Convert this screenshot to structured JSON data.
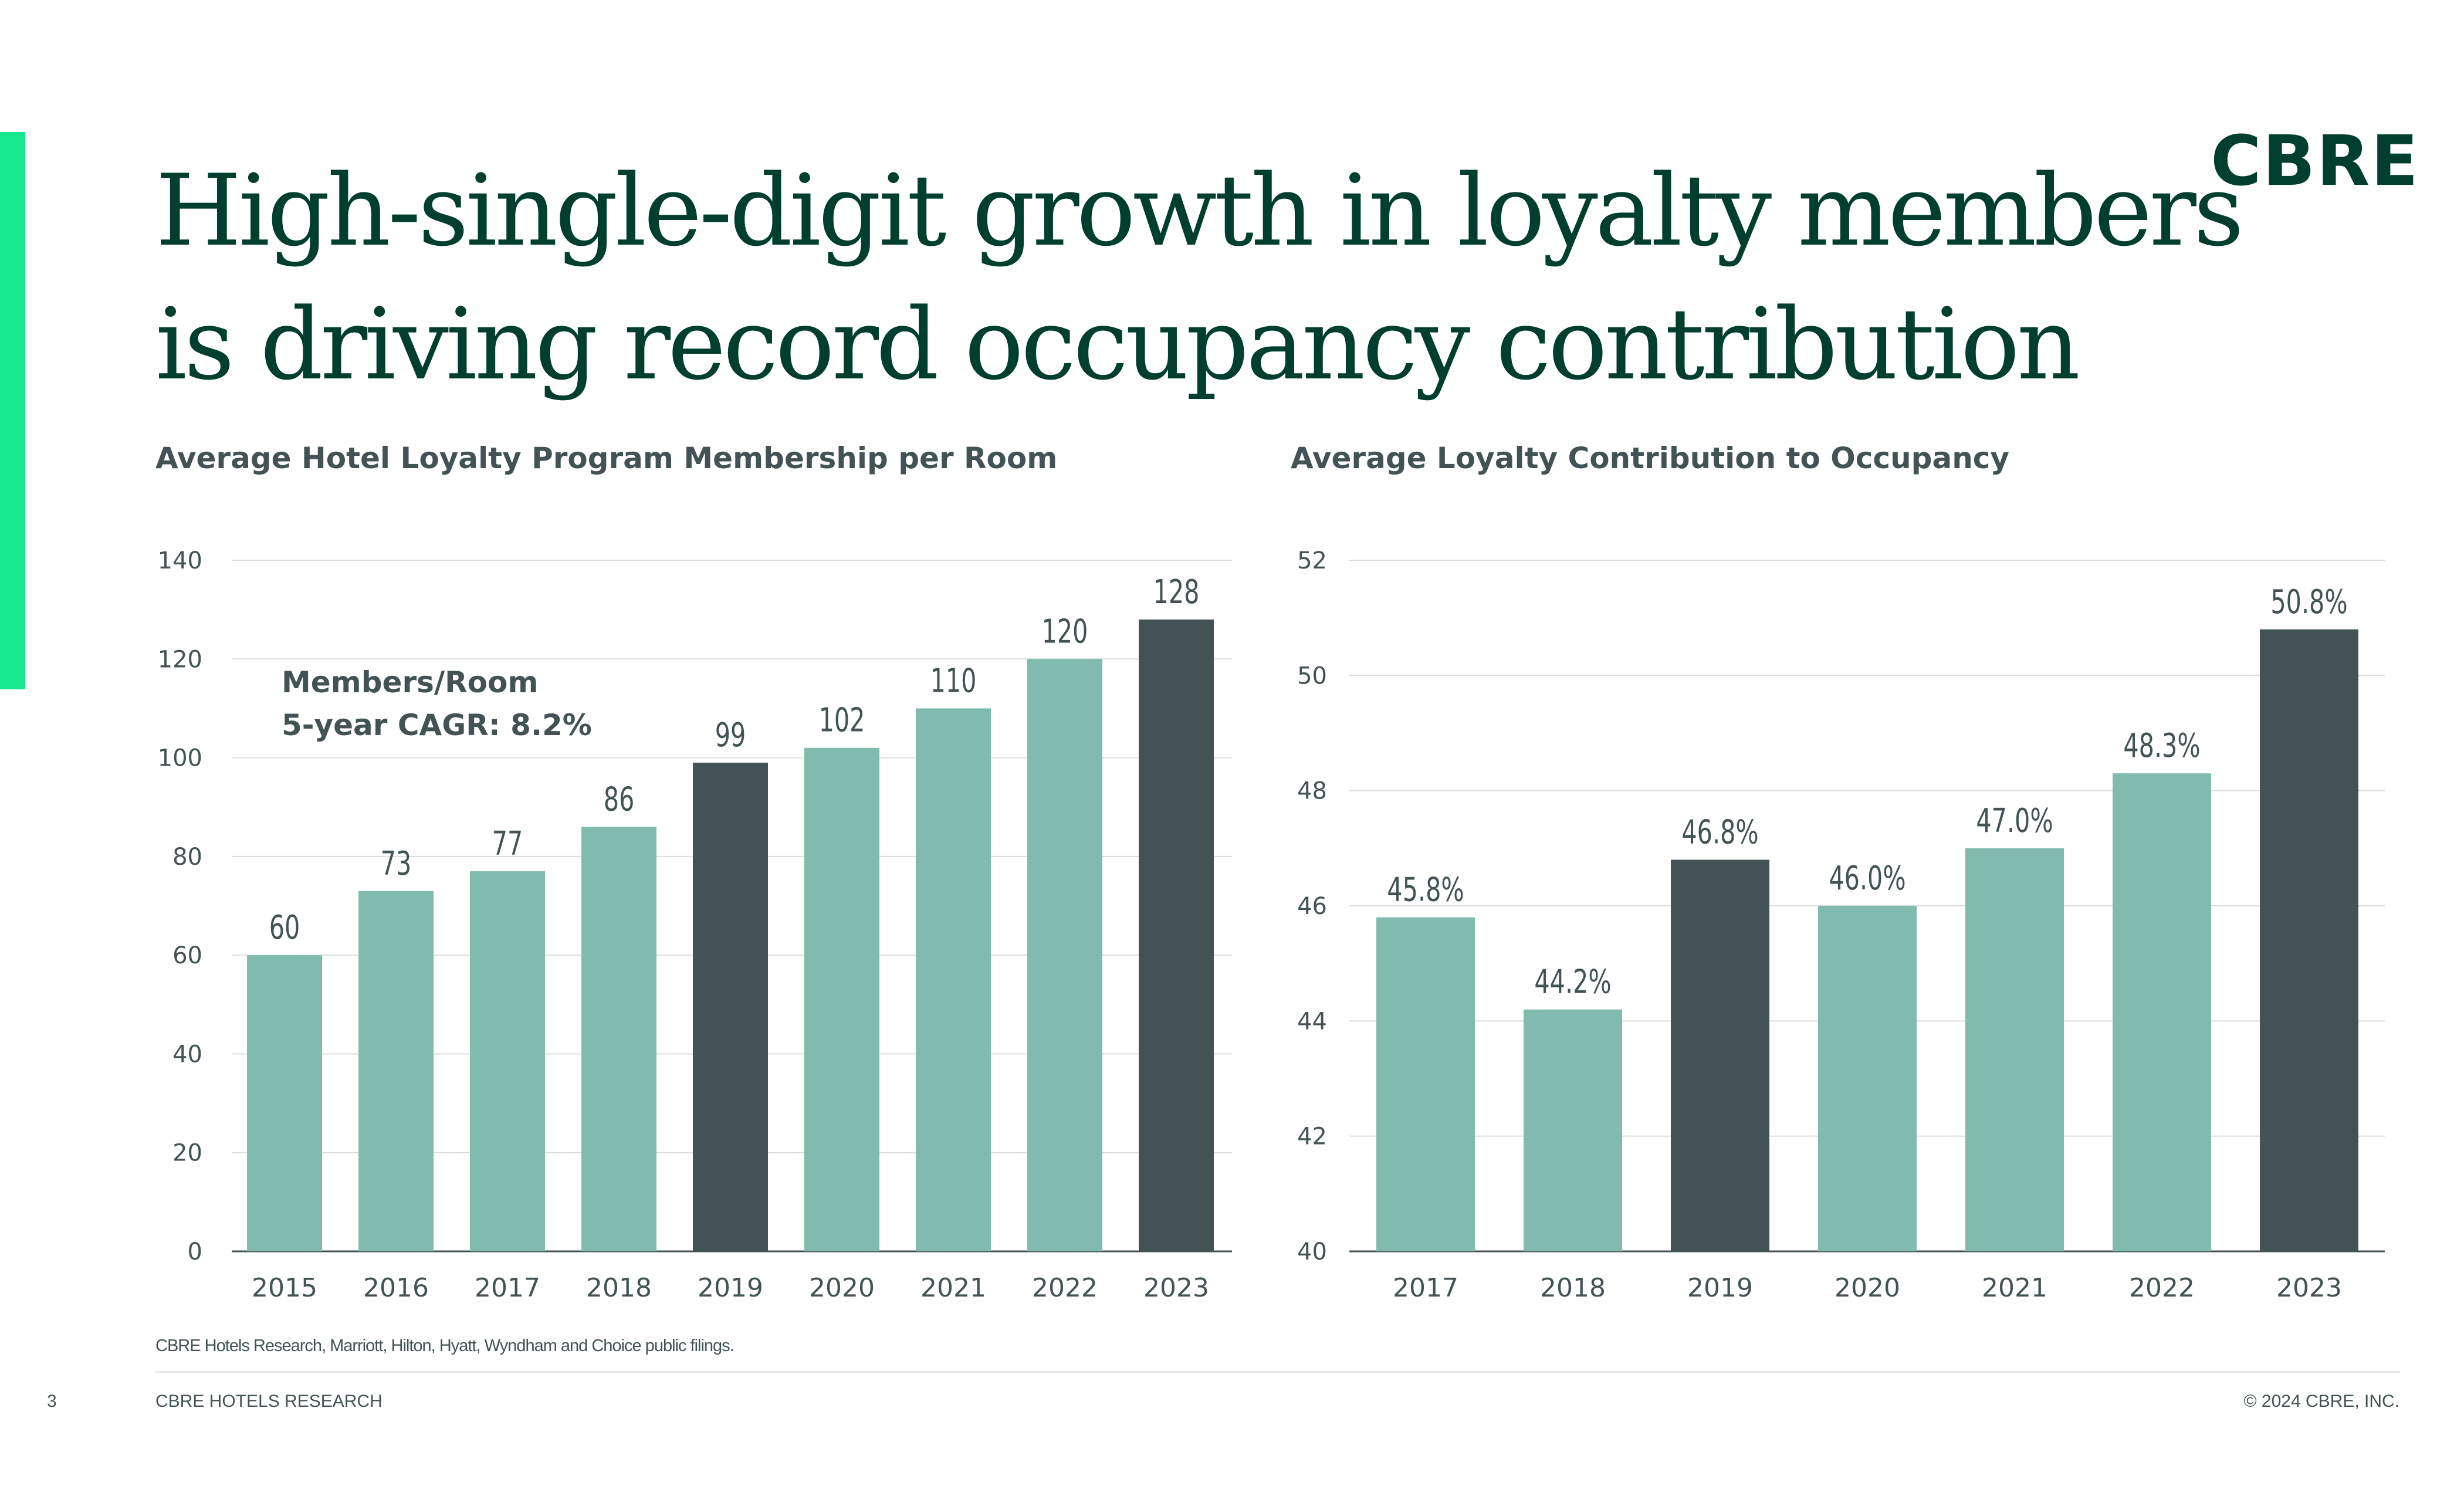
{
  "slide": {
    "title_line1": "High-single-digit growth in loyalty members",
    "title_line2": "is driving record occupancy contribution",
    "logo": "CBRE",
    "source": "CBRE Hotels Research, Marriott, Hilton, Hyatt, Wyndham and Choice public filings.",
    "page_number": "3",
    "footer_left": "CBRE  HOTELS RESEARCH",
    "footer_right": "© 2024 CBRE, INC."
  },
  "colors": {
    "accent": "#17e88f",
    "title": "#003f2d",
    "bar_light": "#80bbad",
    "bar_dark": "#435254"
  },
  "chart_data": [
    {
      "type": "bar",
      "title": "Average Hotel Loyalty Program Membership per Room",
      "categories": [
        "2015",
        "2016",
        "2017",
        "2018",
        "2019",
        "2020",
        "2021",
        "2022",
        "2023"
      ],
      "values": [
        60,
        73,
        77,
        86,
        99,
        102,
        110,
        120,
        128
      ],
      "data_labels": [
        "60",
        "73",
        "77",
        "86",
        "99",
        "102",
        "110",
        "120",
        "128"
      ],
      "highlighted": [
        "2019",
        "2023"
      ],
      "ylim": [
        0,
        140
      ],
      "yticks": [
        0,
        20,
        40,
        60,
        80,
        100,
        120,
        140
      ],
      "grid": true,
      "annotation": [
        "Members/Room",
        "5-year CAGR: 8.2%"
      ]
    },
    {
      "type": "bar",
      "title": "Average Loyalty Contribution to Occupancy",
      "categories": [
        "2017",
        "2018",
        "2019",
        "2020",
        "2021",
        "2022",
        "2023"
      ],
      "values": [
        45.8,
        44.2,
        46.8,
        46.0,
        47.0,
        48.3,
        50.8
      ],
      "data_labels": [
        "45.8%",
        "44.2%",
        "46.8%",
        "46.0%",
        "47.0%",
        "48.3%",
        "50.8%"
      ],
      "highlighted": [
        "2019",
        "2023"
      ],
      "ylim": [
        40,
        52
      ],
      "yticks": [
        40,
        42,
        44,
        46,
        48,
        50,
        52
      ],
      "grid": true
    }
  ]
}
